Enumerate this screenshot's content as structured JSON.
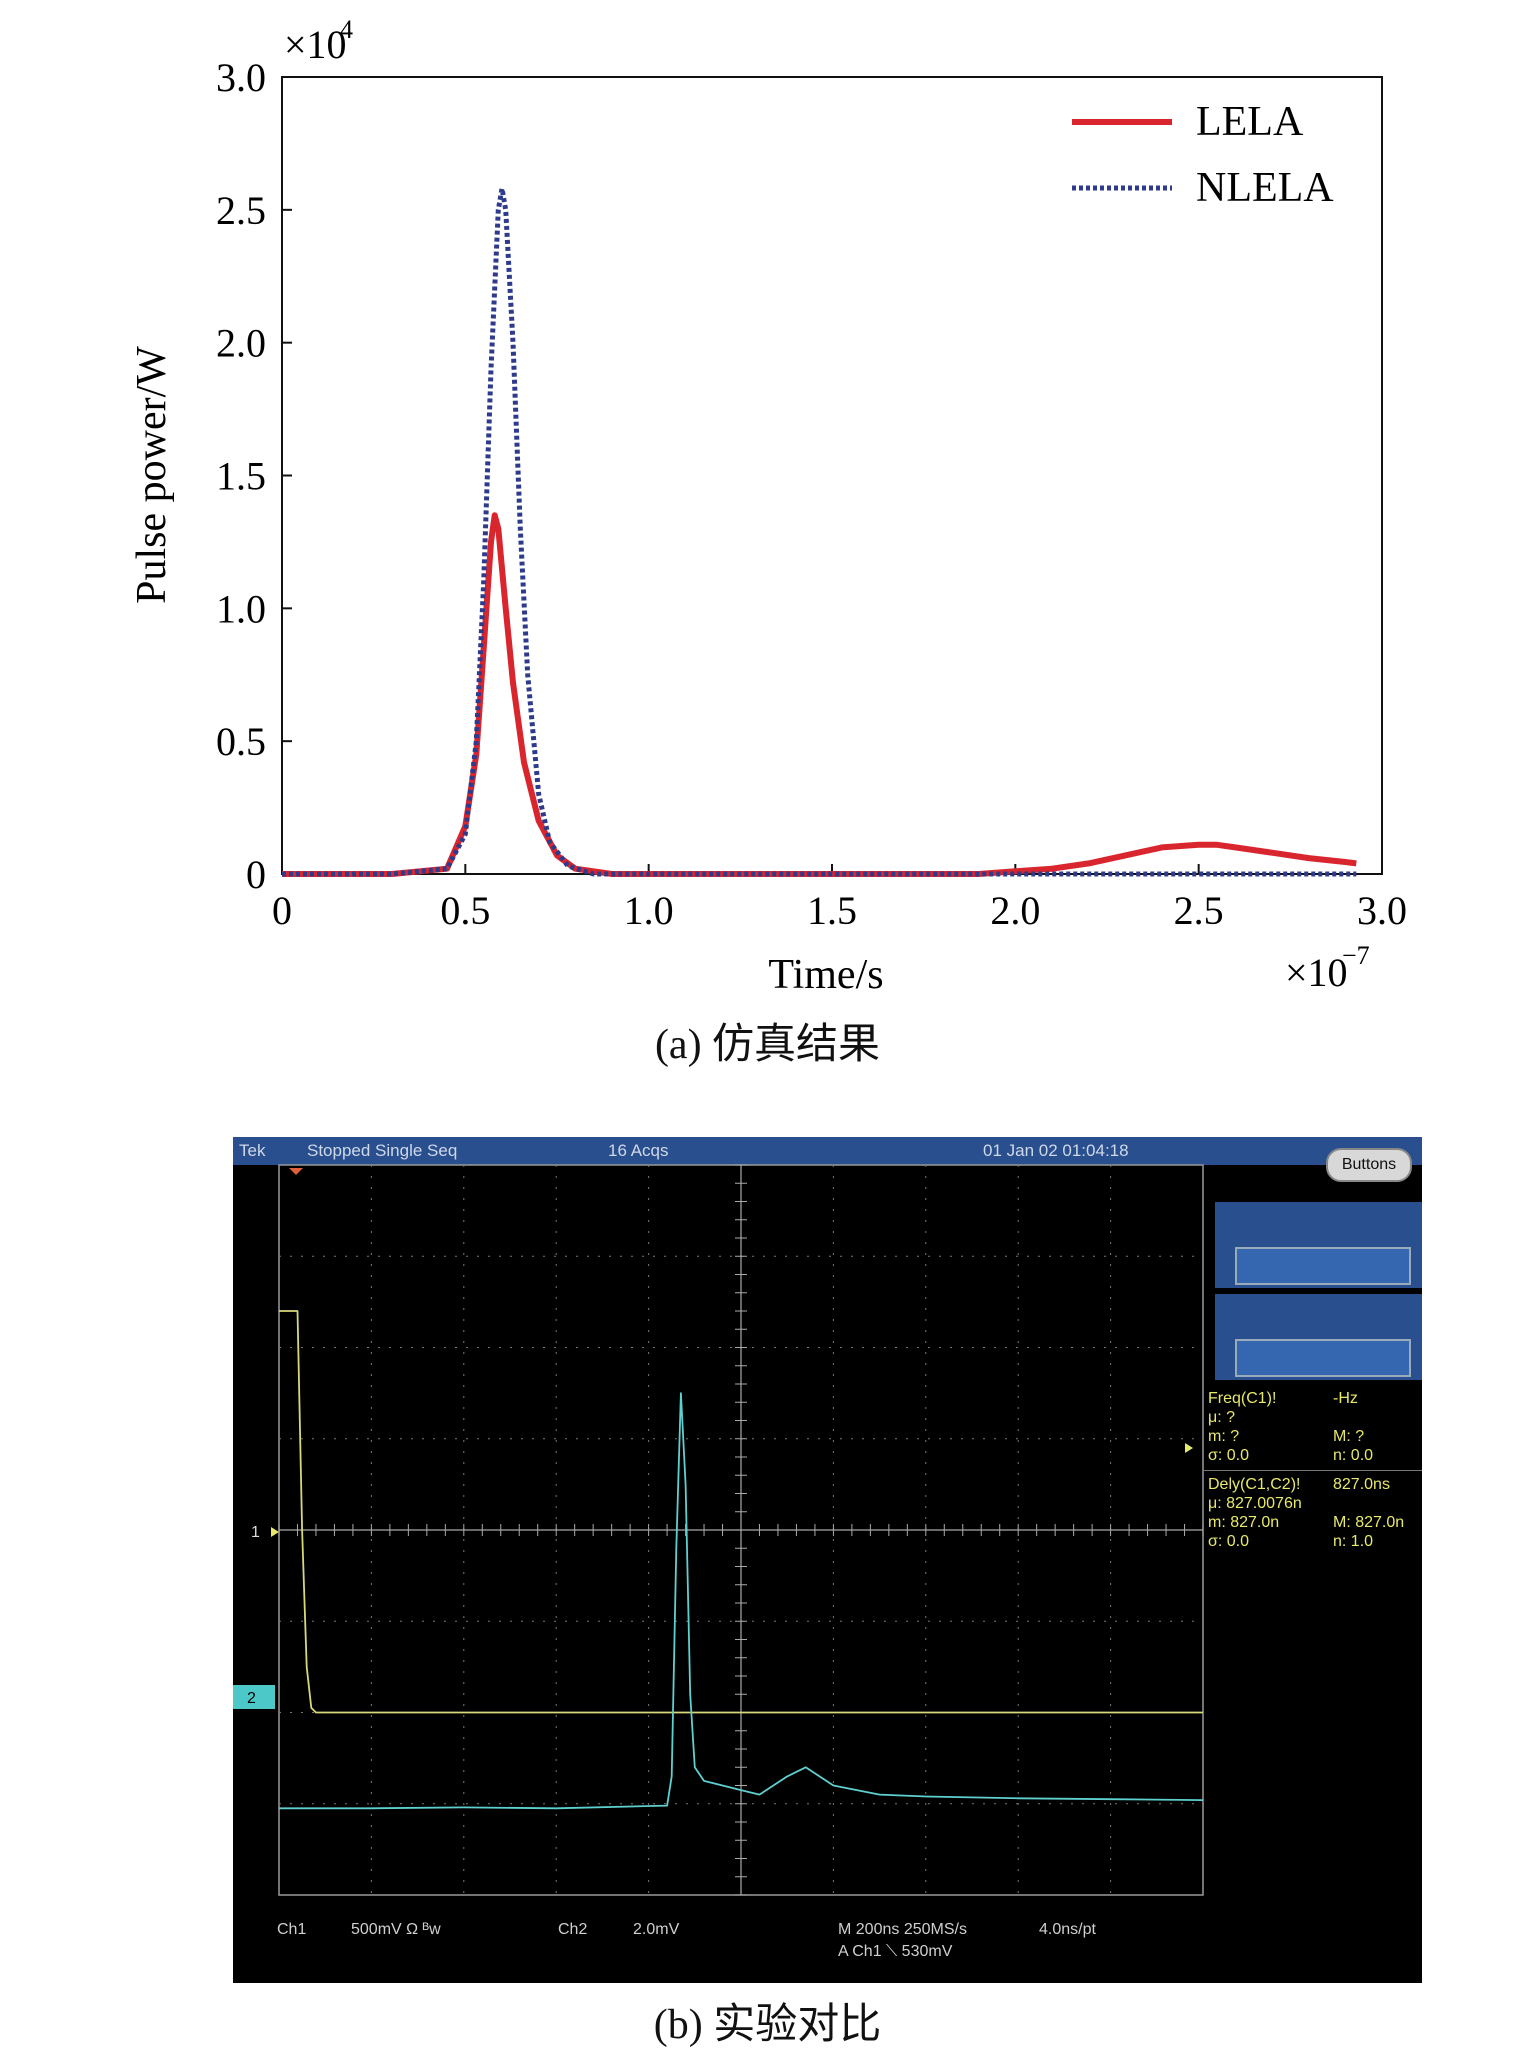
{
  "chart_data": [
    {
      "type": "line",
      "xlabel": "Time/s",
      "ylabel": "Pulse power/W",
      "x_multiplier": "×10^-7",
      "y_multiplier": "×10^4",
      "xlim": [
        0,
        3.0
      ],
      "ylim": [
        0,
        3.0
      ],
      "xticks": [
        "0",
        "0.5",
        "1.0",
        "1.5",
        "2.0",
        "2.5",
        "3.0"
      ],
      "yticks": [
        "0",
        "0.5",
        "1.0",
        "1.5",
        "2.0",
        "2.5",
        "3.0"
      ],
      "legend_placement": "top-right",
      "grid": false,
      "series": [
        {
          "name": "LELA",
          "color": "#d9262e",
          "style": "solid",
          "x": [
            0,
            0.3,
            0.45,
            0.5,
            0.53,
            0.55,
            0.57,
            0.58,
            0.59,
            0.61,
            0.63,
            0.66,
            0.7,
            0.75,
            0.8,
            0.9,
            1.2,
            1.6,
            1.9,
            2.0,
            2.1,
            2.2,
            2.3,
            2.4,
            2.5,
            2.55,
            2.6,
            2.7,
            2.8,
            2.9,
            2.93
          ],
          "y": [
            0,
            0,
            0.02,
            0.18,
            0.45,
            0.85,
            1.25,
            1.35,
            1.3,
            1.0,
            0.72,
            0.42,
            0.2,
            0.07,
            0.02,
            0,
            0,
            0,
            0,
            0.01,
            0.02,
            0.04,
            0.07,
            0.1,
            0.11,
            0.11,
            0.1,
            0.08,
            0.06,
            0.045,
            0.04
          ]
        },
        {
          "name": "NLELA",
          "color": "#2e3a8c",
          "style": "dotted",
          "x": [
            0,
            0.3,
            0.45,
            0.5,
            0.53,
            0.55,
            0.57,
            0.59,
            0.6,
            0.61,
            0.63,
            0.65,
            0.67,
            0.7,
            0.73,
            0.78,
            0.85,
            1.0,
            1.6,
            2.0,
            2.5,
            2.93
          ],
          "y": [
            0,
            0,
            0.02,
            0.15,
            0.5,
            1.1,
            1.9,
            2.5,
            2.58,
            2.5,
            2.0,
            1.3,
            0.75,
            0.3,
            0.12,
            0.03,
            0,
            0,
            0,
            0,
            0,
            0
          ]
        }
      ]
    },
    {
      "type": "line",
      "grid": true,
      "series": [
        {
          "name": "Ch1",
          "color": "#d8d87a",
          "x": [
            0,
            0.02,
            0.025,
            0.03,
            0.035,
            0.04,
            1.0
          ],
          "y": [
            6.4,
            6.4,
            4.0,
            2.5,
            2.05,
            2.0,
            2.0
          ]
        },
        {
          "name": "Ch2",
          "color": "#5fd0d0",
          "x": [
            0,
            0.1,
            0.2,
            0.3,
            0.42,
            0.425,
            0.43,
            0.435,
            0.44,
            0.445,
            0.45,
            0.46,
            0.48,
            0.5,
            0.52,
            0.55,
            0.57,
            0.6,
            0.65,
            0.7,
            0.8,
            0.9,
            1.0
          ],
          "y": [
            0.95,
            0.95,
            0.96,
            0.95,
            0.98,
            1.3,
            3.8,
            5.5,
            4.5,
            2.2,
            1.4,
            1.25,
            1.2,
            1.15,
            1.1,
            1.3,
            1.4,
            1.2,
            1.1,
            1.08,
            1.06,
            1.05,
            1.04
          ]
        }
      ]
    }
  ],
  "panel_a": {
    "y_exp_base": "×10",
    "y_exp": "4",
    "x_exp_base": "×10",
    "x_exp": "−7",
    "caption": "(a) 仿真结果"
  },
  "panel_b": {
    "caption": "(b) 实验对比",
    "top": {
      "brand": "Tek",
      "state": "Stopped  Single Seq",
      "acqs": "16 Acqs",
      "datetime": "01 Jan 02 01:04:18",
      "buttons": "Buttons"
    },
    "meas1": {
      "title": "Freq(C1)!",
      "value": "-Hz",
      "mu": "μ: ?",
      "m": "m: ?",
      "M": "M: ?",
      "sigma": "σ: 0.0",
      "n": "n: 0.0"
    },
    "meas2": {
      "title": "Dely(C1,C2)!",
      "value": "827.0ns",
      "mu": "μ: 827.0076n",
      "m": "m: 827.0n",
      "M": "M: 827.0n",
      "sigma": "σ: 0.0",
      "n": "n: 1.0"
    },
    "bottom": {
      "ch1": "Ch1",
      "ch1_scale": "500mV  Ω  ᴮw",
      "ch2": "Ch2",
      "ch2_scale": "2.0mV",
      "timebase": "M 200ns 250MS/s",
      "resolution": "4.0ns/pt",
      "trigger": "A  Ch1  ⟍  530mV"
    },
    "markers": {
      "ch1": "1",
      "ch2": "2"
    }
  }
}
